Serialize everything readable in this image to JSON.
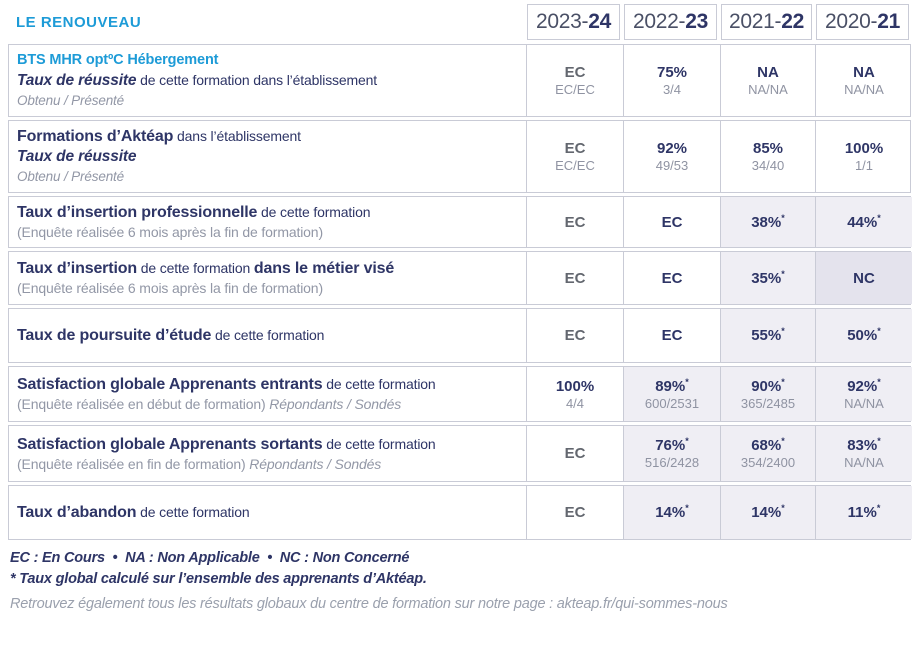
{
  "title": "LE RENOUVEAU",
  "colors": {
    "accent_blue": "#1d9bd7",
    "navy": "#2e3566",
    "gray_text": "#8f93a2",
    "border": "#c9cbd6",
    "cell_shade": "#efeef4",
    "cell_shade_dark": "#e4e3ed"
  },
  "columns": [
    {
      "prefix": "2023-",
      "suffix": "24"
    },
    {
      "prefix": "2022-",
      "suffix": "23"
    },
    {
      "prefix": "2021-",
      "suffix": "22"
    },
    {
      "prefix": "2020-",
      "suffix": "21"
    }
  ],
  "rows": [
    {
      "course": "BTS MHR optºC Hébergement",
      "t_bold": "Taux de réussite",
      "t_rest": " de cette formation dans l’établissement",
      "note": "Obtenu / Présenté",
      "cells": [
        {
          "v": "EC",
          "sub": "EC/EC"
        },
        {
          "v": "75%",
          "sub": "3/4"
        },
        {
          "v": "NA",
          "sub": "NA/NA"
        },
        {
          "v": "NA",
          "sub": "NA/NA"
        }
      ]
    },
    {
      "t_bold": "Formations d’Aktéap",
      "t_rest": " dans l’établissement",
      "t_bold2": "Taux de réussite",
      "note": "Obtenu / Présenté",
      "cells": [
        {
          "v": "EC",
          "sub": "EC/EC"
        },
        {
          "v": "92%",
          "sub": "49/53"
        },
        {
          "v": "85%",
          "sub": "34/40"
        },
        {
          "v": "100%",
          "sub": "1/1"
        }
      ]
    },
    {
      "t_bold": "Taux d’insertion professionnelle",
      "t_rest": " de cette formation",
      "note": "(Enquête réalisée 6 mois après la fin de formation)",
      "cells": [
        {
          "v": "EC"
        },
        {
          "v": "EC"
        },
        {
          "v": "38%",
          "star": "*"
        },
        {
          "v": "44%",
          "star": "*"
        }
      ]
    },
    {
      "t_bold": "Taux d’insertion",
      "t_rest": " de cette formation ",
      "t_bold2": "dans le métier visé",
      "note": "(Enquête réalisée 6 mois après la fin de formation)",
      "cells": [
        {
          "v": "EC"
        },
        {
          "v": "EC"
        },
        {
          "v": "35%",
          "star": "*"
        },
        {
          "v": "NC"
        }
      ]
    },
    {
      "t_bold": "Taux de poursuite d’étude",
      "t_rest": " de cette formation",
      "cells": [
        {
          "v": "EC"
        },
        {
          "v": "EC"
        },
        {
          "v": "55%",
          "star": "*"
        },
        {
          "v": "50%",
          "star": "*"
        }
      ]
    },
    {
      "t_bold": "Satisfaction globale Apprenants entrants",
      "t_rest": " de cette formation",
      "note": "(Enquête réalisée en début de formation) ",
      "note_it": "Répondants / Sondés",
      "cells": [
        {
          "v": "100%",
          "sub": "4/4"
        },
        {
          "v": "89%",
          "star": "*",
          "sub": "600/2531"
        },
        {
          "v": "90%",
          "star": "*",
          "sub": "365/2485"
        },
        {
          "v": "92%",
          "star": "*",
          "sub": "NA/NA"
        }
      ]
    },
    {
      "t_bold": "Satisfaction globale Apprenants sortants",
      "t_rest": " de cette formation",
      "note": "(Enquête réalisée en fin de formation) ",
      "note_it": "Répondants / Sondés",
      "cells": [
        {
          "v": "EC"
        },
        {
          "v": "76%",
          "star": "*",
          "sub": "516/2428"
        },
        {
          "v": "68%",
          "star": "*",
          "sub": "354/2400"
        },
        {
          "v": "83%",
          "star": "*",
          "sub": "NA/NA"
        }
      ]
    },
    {
      "t_bold": "Taux d’abandon",
      "t_rest": " de cette formation",
      "cells": [
        {
          "v": "EC"
        },
        {
          "v": "14%",
          "star": "*"
        },
        {
          "v": "14%",
          "star": "*"
        },
        {
          "v": "11%",
          "star": "*"
        }
      ]
    }
  ],
  "footer": {
    "legend": "EC : En Cours  •  NA : Non Applicable  •  NC : Non Concerné",
    "star_note": "* Taux global calculé sur l’ensemble des apprenants d’Aktéap.",
    "link_line": "Retrouvez également tous les résultats globaux du centre de formation sur notre page : akteap.fr/qui-sommes-nous"
  }
}
